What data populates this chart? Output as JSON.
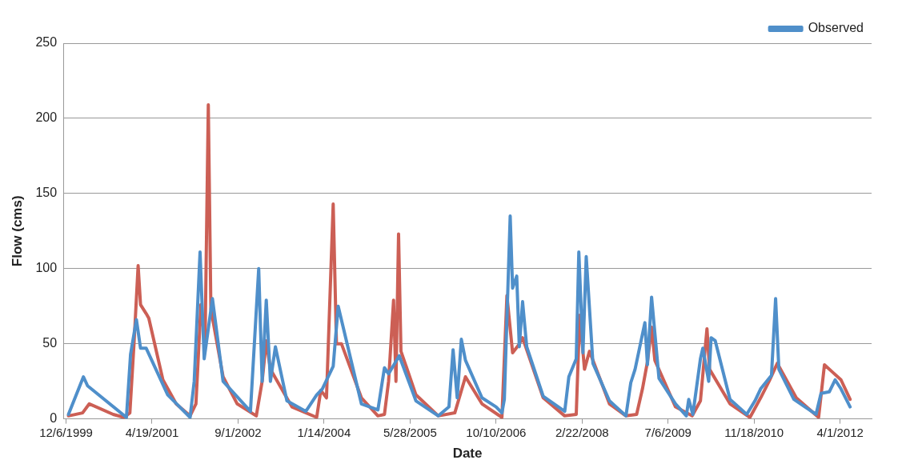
{
  "chart_data": {
    "type": "line",
    "xlabel": "Date",
    "ylabel": "Flow (cms)",
    "xlim": [
      "1999-11-20",
      "2012-10-01"
    ],
    "xticks": [
      {
        "value": "1999-12-06",
        "label": "12/6/1999"
      },
      {
        "value": "2001-04-19",
        "label": "4/19/2001"
      },
      {
        "value": "2002-09-01",
        "label": "9/1/2002"
      },
      {
        "value": "2004-01-14",
        "label": "1/14/2004"
      },
      {
        "value": "2005-05-28",
        "label": "5/28/2005"
      },
      {
        "value": "2006-10-10",
        "label": "10/10/2006"
      },
      {
        "value": "2008-02-22",
        "label": "2/22/2008"
      },
      {
        "value": "2009-07-06",
        "label": "7/6/2009"
      },
      {
        "value": "2010-11-18",
        "label": "11/18/2010"
      },
      {
        "value": "2012-04-01",
        "label": "4/1/2012"
      }
    ],
    "ylim": [
      0,
      250
    ],
    "yticks": [
      0,
      50,
      100,
      150,
      200,
      250
    ],
    "grid": "y",
    "legend": "top right",
    "line_style": "solid",
    "marker": "none",
    "series": [
      {
        "name": "Observed",
        "color": "#4f8fca",
        "x": [
          "1999-12-20",
          "2000-03-16",
          "2000-04-09",
          "2000-11-21",
          "2000-12-15",
          "2001-01-18",
          "2001-02-11",
          "2001-03-16",
          "2001-07-19",
          "2001-11-26",
          "2001-12-20",
          "2002-01-23",
          "2002-02-16",
          "2002-04-05",
          "2002-06-06",
          "2002-11-12",
          "2002-12-30",
          "2003-01-19",
          "2003-02-12",
          "2003-03-08",
          "2003-04-06",
          "2003-06-12",
          "2003-09-30",
          "2003-12-02",
          "2004-01-04",
          "2004-03-07",
          "2004-04-05",
          "2004-08-18",
          "2004-11-22",
          "2004-12-30",
          "2005-01-23",
          "2005-03-26",
          "2005-07-01",
          "2005-11-08",
          "2006-01-09",
          "2006-02-02",
          "2006-02-26",
          "2006-03-22",
          "2006-04-15",
          "2006-07-20",
          "2006-10-10",
          "2006-11-13",
          "2006-11-27",
          "2006-12-31",
          "2007-01-14",
          "2007-02-07",
          "2007-02-22",
          "2007-03-13",
          "2007-04-06",
          "2007-07-11",
          "2007-11-13",
          "2007-12-07",
          "2008-01-19",
          "2008-02-03",
          "2008-02-27",
          "2008-03-17",
          "2008-04-25",
          "2008-07-30",
          "2008-11-03",
          "2008-12-01",
          "2008-12-26",
          "2009-02-21",
          "2009-03-08",
          "2009-04-01",
          "2009-05-14",
          "2009-08-18",
          "2009-10-20",
          "2009-11-03",
          "2009-11-27",
          "2010-01-10",
          "2010-01-24",
          "2010-02-27",
          "2010-03-13",
          "2010-04-06",
          "2010-07-01",
          "2010-10-06",
          "2010-11-23",
          "2010-12-26",
          "2011-02-27",
          "2011-03-23",
          "2011-04-11",
          "2011-07-07",
          "2011-11-13",
          "2011-12-12",
          "2012-01-29",
          "2012-03-03",
          "2012-04-06",
          "2012-05-29"
        ],
        "values": [
          3,
          28,
          22,
          1,
          43,
          66,
          47,
          47,
          16,
          1,
          25,
          111,
          40,
          80,
          25,
          5,
          100,
          25,
          79,
          25,
          48,
          12,
          5,
          16,
          20,
          35,
          75,
          10,
          6,
          34,
          30,
          42,
          12,
          2,
          8,
          46,
          14,
          53,
          39,
          14,
          8,
          4,
          13,
          135,
          87,
          95,
          48,
          78,
          48,
          15,
          5,
          28,
          40,
          111,
          44,
          108,
          37,
          12,
          2,
          24,
          33,
          64,
          36,
          81,
          27,
          10,
          2,
          13,
          3,
          40,
          47,
          25,
          54,
          52,
          13,
          3,
          12,
          20,
          29,
          80,
          33,
          13,
          3,
          17,
          18,
          26,
          20,
          8
        ]
      },
      {
        "color": "#cc5f55",
        "x": [
          "1999-12-20",
          "2000-03-11",
          "2000-04-19",
          "2000-09-05",
          "2000-11-07",
          "2000-12-11",
          "2001-01-04",
          "2001-01-28",
          "2001-02-11",
          "2001-03-16",
          "2001-03-31",
          "2001-06-21",
          "2001-09-06",
          "2001-11-26",
          "2001-12-30",
          "2002-01-28",
          "2002-02-21",
          "2002-03-12",
          "2002-03-27",
          "2002-06-06",
          "2002-08-27",
          "2002-12-16",
          "2003-01-19",
          "2003-02-12",
          "2003-03-08",
          "2003-07-11",
          "2003-12-02",
          "2003-12-26",
          "2004-01-28",
          "2004-03-07",
          "2004-03-26",
          "2004-04-24",
          "2004-08-18",
          "2004-11-22",
          "2004-12-30",
          "2005-01-23",
          "2005-02-21",
          "2005-03-07",
          "2005-03-22",
          "2005-04-05",
          "2005-07-01",
          "2005-11-08",
          "2006-02-12",
          "2006-04-15",
          "2006-07-20",
          "2006-11-13",
          "2006-12-12",
          "2007-01-14",
          "2007-02-17",
          "2007-03-13",
          "2007-07-11",
          "2007-11-13",
          "2008-01-19",
          "2008-02-08",
          "2008-03-07",
          "2008-04-05",
          "2008-07-30",
          "2008-11-03",
          "2009-01-04",
          "2009-02-07",
          "2009-03-08",
          "2009-04-01",
          "2009-04-20",
          "2009-08-18",
          "2009-11-23",
          "2010-01-10",
          "2010-02-17",
          "2010-03-04",
          "2010-07-01",
          "2010-10-25",
          "2010-12-26",
          "2011-02-13",
          "2011-04-02",
          "2011-07-21",
          "2011-11-28",
          "2012-01-01",
          "2012-02-18",
          "2012-04-06",
          "2012-05-29"
        ],
        "values": [
          2,
          4,
          10,
          3,
          1,
          4,
          50,
          102,
          76,
          70,
          67,
          26,
          10,
          2,
          10,
          76,
          50,
          209,
          73,
          28,
          10,
          2,
          25,
          52,
          33,
          8,
          1,
          19,
          14,
          143,
          50,
          50,
          14,
          2,
          3,
          25,
          79,
          25,
          123,
          45,
          16,
          2,
          4,
          28,
          10,
          1,
          82,
          44,
          49,
          54,
          14,
          2,
          3,
          69,
          33,
          45,
          10,
          2,
          3,
          20,
          38,
          61,
          39,
          8,
          2,
          12,
          60,
          33,
          10,
          1,
          14,
          25,
          37,
          14,
          1,
          36,
          31,
          26,
          13
        ]
      }
    ]
  }
}
